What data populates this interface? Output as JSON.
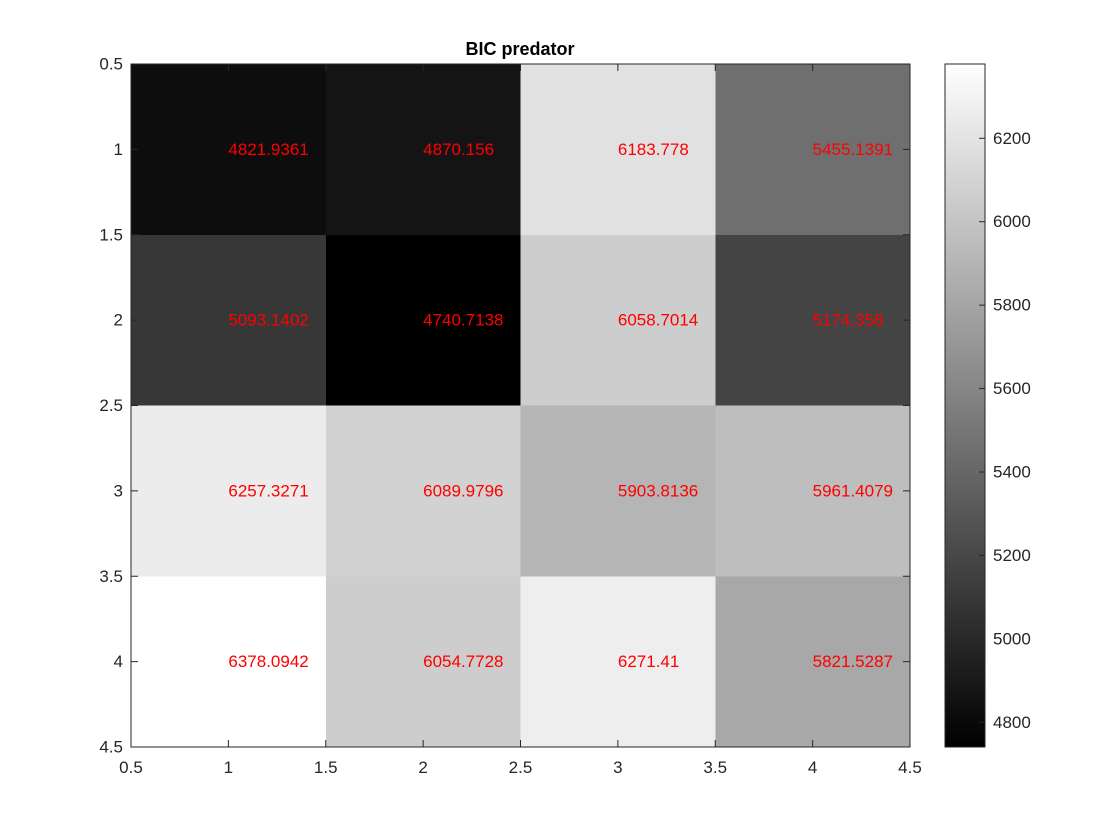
{
  "chart_data": {
    "type": "heatmap",
    "title": "BIC predator",
    "xlabel": "",
    "ylabel": "",
    "x": [
      1,
      2,
      3,
      4
    ],
    "y": [
      1,
      2,
      3,
      4
    ],
    "xlim": [
      0.5,
      4.5
    ],
    "ylim": [
      0.5,
      4.5
    ],
    "y_direction": "reverse",
    "x_ticks": [
      "0.5",
      "1",
      "1.5",
      "2",
      "2.5",
      "3",
      "3.5",
      "4",
      "4.5"
    ],
    "y_ticks": [
      "0.5",
      "1",
      "1.5",
      "2",
      "2.5",
      "3",
      "3.5",
      "4",
      "4.5"
    ],
    "values": [
      [
        4821.9361,
        4870.156,
        6183.778,
        5455.1391
      ],
      [
        5093.1402,
        4740.7138,
        6058.7014,
        5174.358
      ],
      [
        6257.3271,
        6089.9796,
        5903.8136,
        5961.4079
      ],
      [
        6378.0942,
        6054.7728,
        6271.41,
        5821.5287
      ]
    ],
    "cell_labels": [
      [
        "4821.9361",
        "4870.156",
        "6183.778",
        "5455.1391"
      ],
      [
        "5093.1402",
        "4740.7138",
        "6058.7014",
        "5174.358"
      ],
      [
        "6257.3271",
        "6089.9796",
        "5903.8136",
        "5961.4079"
      ],
      [
        "6378.0942",
        "6054.7728",
        "6271.41",
        "5821.5287"
      ]
    ],
    "colormap": "gray",
    "clim": [
      4740.7138,
      6378.0942
    ],
    "colorbar": {
      "position": "right",
      "ticks": [
        4800,
        5000,
        5200,
        5400,
        5600,
        5800,
        6000,
        6200
      ],
      "tick_labels": [
        "4800",
        "5000",
        "5200",
        "5400",
        "5600",
        "5800",
        "6000",
        "6200"
      ]
    },
    "grid": false,
    "colors": {
      "cell_label": "#ff0000",
      "axis": "#262626"
    }
  }
}
